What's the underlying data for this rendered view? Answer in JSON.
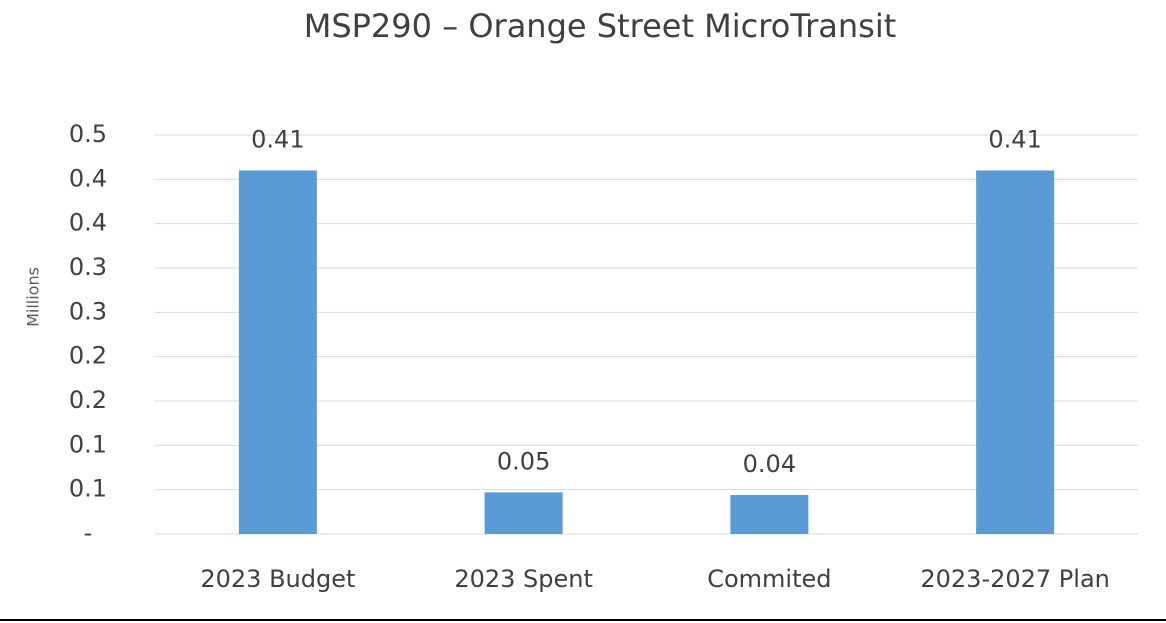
{
  "chart_data": {
    "type": "bar",
    "title": "MSP290 – Orange Street MicroTransit",
    "y_label": "Millions",
    "categories": [
      "2023 Budget",
      "2023 Spent",
      "Commited",
      "2023-2027 Plan"
    ],
    "values": [
      0.41,
      0.047,
      0.044,
      0.41
    ],
    "value_labels": [
      "0.41",
      "0.05",
      "0.04",
      "0.41"
    ],
    "color": "#5b9bd5",
    "ylim": [
      0,
      0.45
    ],
    "yticks": [
      {
        "value": 0,
        "label": "-"
      },
      {
        "value": 0.05,
        "label": "0.1"
      },
      0.1,
      {
        "value": 0.15,
        "label": "0.2"
      },
      0.2,
      {
        "value": 0.25,
        "label": "0.3"
      },
      0.3,
      {
        "value": 0.35,
        "label": "0.4"
      },
      0.4,
      {
        "value": 0.45,
        "label": "0.5"
      }
    ],
    "grid": true
  }
}
